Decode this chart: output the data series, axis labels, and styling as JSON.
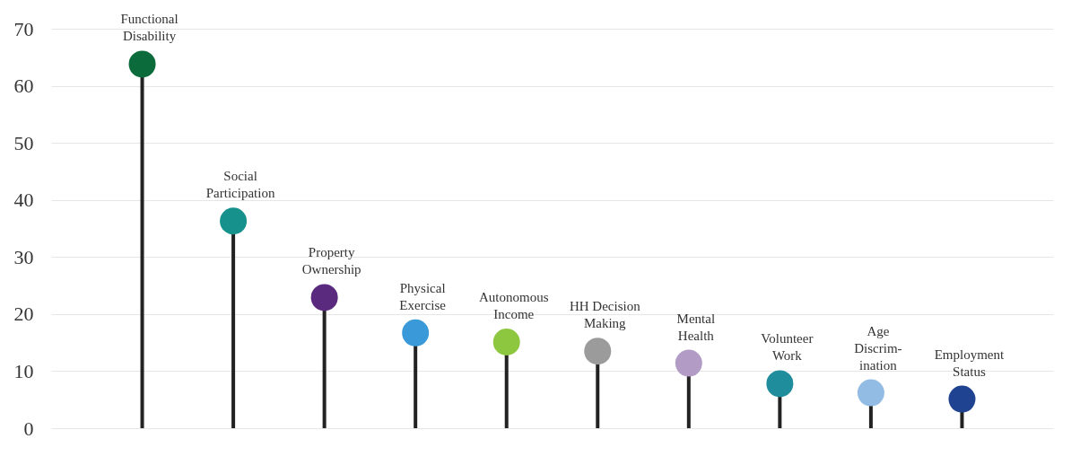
{
  "chart_data": {
    "type": "lollipop",
    "categories": [
      "Functional\nDisability",
      "Social\nParticipation",
      "Property\nOwnership",
      "Physical\nExercise",
      "Autonomous\nIncome",
      "HH Decision\nMaking",
      "Mental\nHealth",
      "Volunteer\nWork",
      "Age\nDiscrim-\nination",
      "Employment\nStatus"
    ],
    "values": [
      63.8,
      36.3,
      22.9,
      16.7,
      15.1,
      13.5,
      11.4,
      7.8,
      6.2,
      5.1
    ],
    "colors": [
      "#0b6b3a",
      "#17918c",
      "#5a2a7e",
      "#3a9ad9",
      "#8dc63f",
      "#9b9b9b",
      "#b29cc6",
      "#1f8d9b",
      "#92bce3",
      "#1f4390"
    ],
    "ylim": [
      0,
      70
    ],
    "yticks": [
      0,
      10,
      20,
      30,
      40,
      50,
      60,
      70
    ],
    "grid": "y",
    "marker": "circle"
  }
}
